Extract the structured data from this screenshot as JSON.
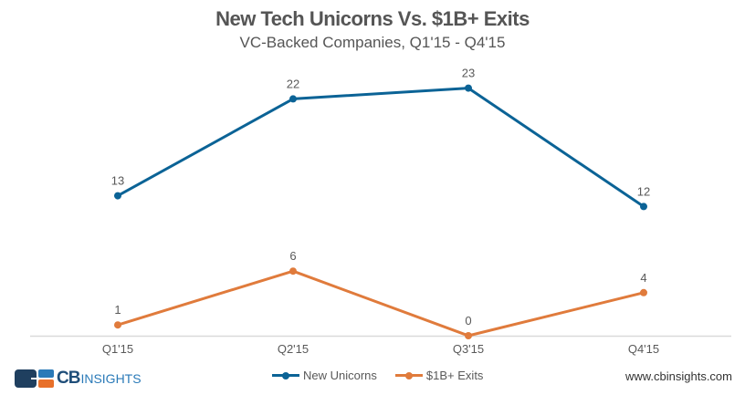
{
  "chart_data": {
    "type": "line",
    "title": "New Tech Unicorns Vs. $1B+ Exits",
    "subtitle": "VC-Backed Companies, Q1'15 - Q4'15",
    "categories": [
      "Q1'15",
      "Q2'15",
      "Q3'15",
      "Q4'15"
    ],
    "series": [
      {
        "name": "New Unicorns",
        "color": "#0b6396",
        "values": [
          13,
          22,
          23,
          12
        ]
      },
      {
        "name": "$1B+ Exits",
        "color": "#e07b3c",
        "values": [
          1,
          6,
          0,
          4
        ]
      }
    ],
    "xlabel": "",
    "ylabel": "",
    "ylim": [
      0,
      23
    ],
    "grid": false,
    "y_axis_visible": false,
    "data_labels": true,
    "legend_position": "bottom"
  },
  "footer": {
    "logo_bold": "CB",
    "logo_light": "INSIGHTS",
    "url": "www.cbinsights.com"
  },
  "colors": {
    "axis": "#d9d9d9",
    "text": "#595959",
    "logo_navy": "#1f3f5f",
    "logo_blue": "#2a7ab8",
    "logo_orange": "#e8702a"
  }
}
